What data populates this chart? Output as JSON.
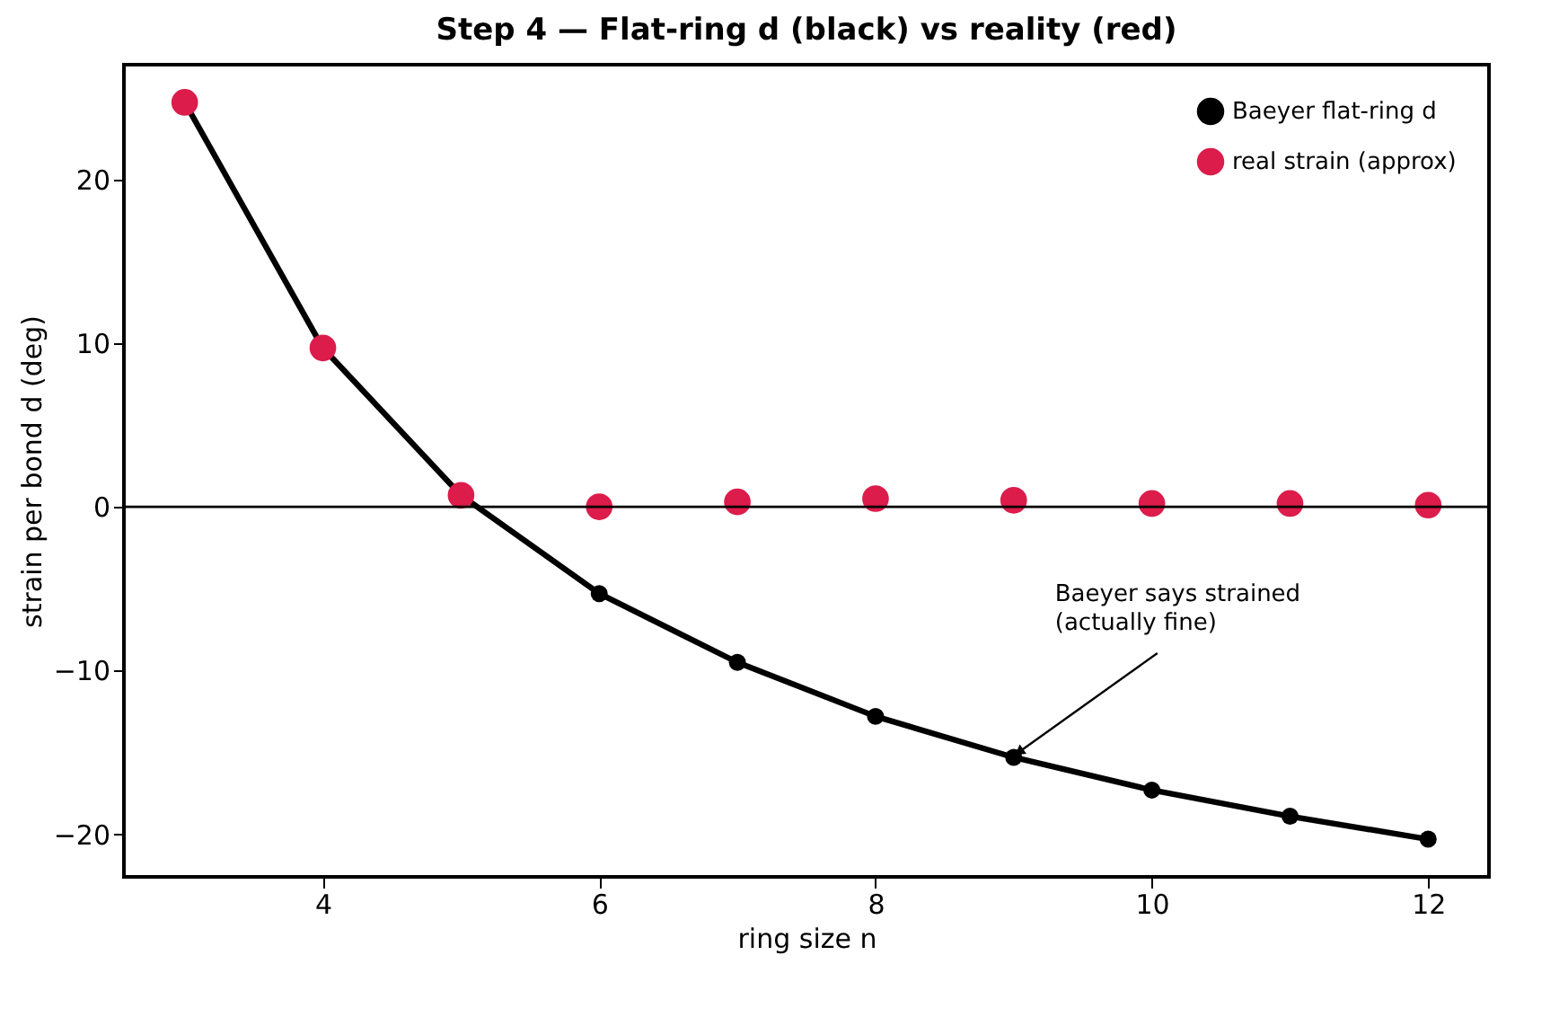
{
  "chart_data": {
    "type": "line",
    "title": "Step 4 — Flat-ring d (black) vs reality (red)",
    "xlabel": "ring size n",
    "ylabel": "strain per bond d (deg)",
    "x": [
      3,
      4,
      5,
      6,
      7,
      8,
      9,
      10,
      11,
      12
    ],
    "series": [
      {
        "name": "Baeyer flat-ring d",
        "color": "#000000",
        "values": [
          24.7,
          9.7,
          0.7,
          -5.3,
          -9.5,
          -12.8,
          -15.3,
          -17.3,
          -18.9,
          -20.3
        ]
      },
      {
        "name": "real strain (approx)",
        "color": "#dc1c4b",
        "type": "scatter",
        "values": [
          24.7,
          9.7,
          0.7,
          0.0,
          0.3,
          0.5,
          0.4,
          0.2,
          0.2,
          0.1
        ]
      }
    ],
    "marker": "circle",
    "line_style": "solid",
    "xlim": [
      2.56,
      12.44
    ],
    "xticks": [
      4,
      6,
      8,
      10,
      12
    ],
    "ylim": [
      -22.6,
      27
    ],
    "yticks": [
      -20,
      -10,
      0,
      10,
      20
    ],
    "grid": false,
    "legend": "top right",
    "ref_lines": [
      {
        "axis": "y",
        "value": 0,
        "color": "#000000"
      }
    ],
    "annotations": [
      {
        "text": "Baeyer says strained\n(actually fine)",
        "x": 9,
        "y": -15.3
      }
    ]
  }
}
